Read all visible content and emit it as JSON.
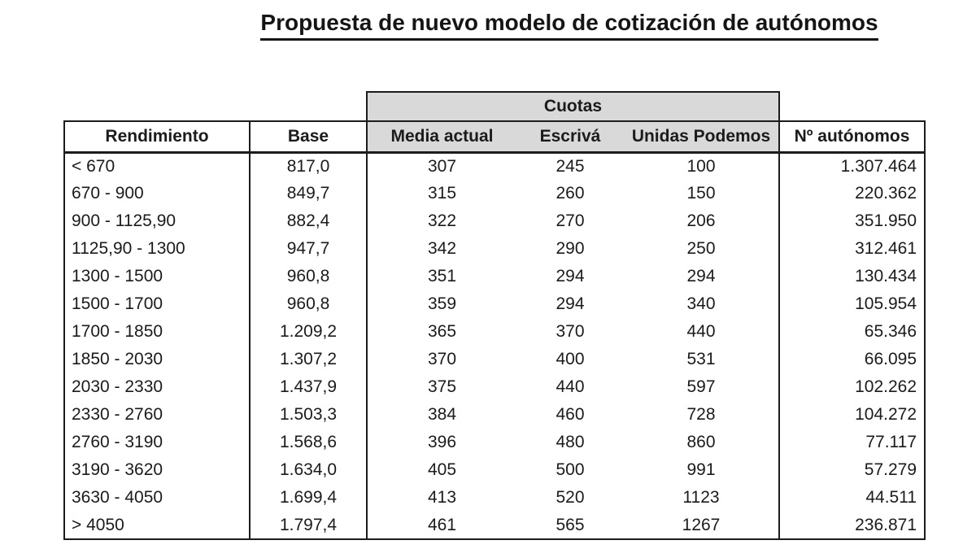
{
  "title": "Propuesta de nuevo modelo de cotización de autónomos",
  "colors": {
    "header_bg": "#d9d9d9",
    "border": "#1c1c1c",
    "text": "#1b1b1b",
    "background": "#ffffff"
  },
  "chart_data": {
    "type": "table",
    "title": "Propuesta de nuevo modelo de cotización de autónomos",
    "group_header": "Cuotas",
    "group_header_spans": [
      "Media actual",
      "Escrivá",
      "Unidas Podemos"
    ],
    "columns": [
      "Rendimiento",
      "Base",
      "Media actual",
      "Escrivá",
      "Unidas Podemos",
      "Nº autónomos"
    ],
    "rows": [
      [
        "< 670",
        "817,0",
        "307",
        "245",
        "100",
        "1.307.464"
      ],
      [
        "670 - 900",
        "849,7",
        "315",
        "260",
        "150",
        "220.362"
      ],
      [
        "900 - 1125,90",
        "882,4",
        "322",
        "270",
        "206",
        "351.950"
      ],
      [
        "1125,90 - 1300",
        "947,7",
        "342",
        "290",
        "250",
        "312.461"
      ],
      [
        "1300 - 1500",
        "960,8",
        "351",
        "294",
        "294",
        "130.434"
      ],
      [
        "1500 - 1700",
        "960,8",
        "359",
        "294",
        "340",
        "105.954"
      ],
      [
        "1700 - 1850",
        "1.209,2",
        "365",
        "370",
        "440",
        "65.346"
      ],
      [
        "1850 - 2030",
        "1.307,2",
        "370",
        "400",
        "531",
        "66.095"
      ],
      [
        "2030 - 2330",
        "1.437,9",
        "375",
        "440",
        "597",
        "102.262"
      ],
      [
        "2330 - 2760",
        "1.503,3",
        "384",
        "460",
        "728",
        "104.272"
      ],
      [
        "2760 - 3190",
        "1.568,6",
        "396",
        "480",
        "860",
        "77.117"
      ],
      [
        "3190 - 3620",
        "1.634,0",
        "405",
        "500",
        "991",
        "57.279"
      ],
      [
        "3630 - 4050",
        "1.699,4",
        "413",
        "520",
        "1123",
        "44.511"
      ],
      [
        "> 4050",
        "1.797,4",
        "461",
        "565",
        "1267",
        "236.871"
      ]
    ]
  }
}
